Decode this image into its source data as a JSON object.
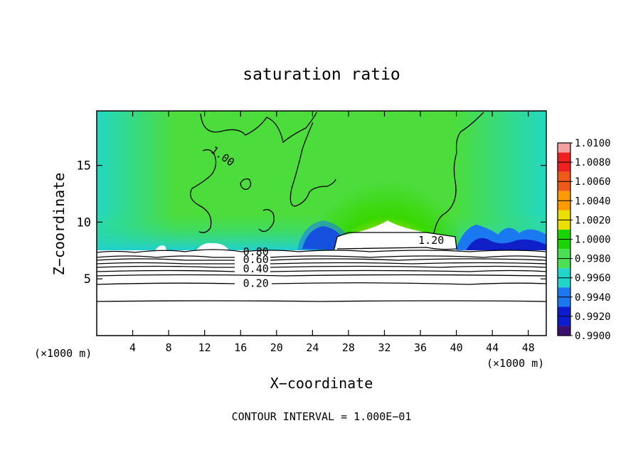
{
  "chart_data": {
    "type": "heatmap",
    "title": "saturation ratio",
    "xlabel": "X−coordinate",
    "ylabel": "Z−coordinate",
    "x_unit_left": "(×1000 m)",
    "x_unit_right": "(×1000 m)",
    "xlim": [
      0,
      50
    ],
    "ylim": [
      0,
      19.8
    ],
    "xticks": [
      4,
      8,
      12,
      16,
      20,
      24,
      28,
      32,
      36,
      40,
      44,
      48
    ],
    "yticks": [
      5,
      10,
      15
    ],
    "footer": "CONTOUR INTERVAL = 1.000E−01",
    "colorbar": {
      "levels": [
        "1.0100",
        "1.0080",
        "1.0060",
        "1.0040",
        "1.0020",
        "1.0000",
        "0.9980",
        "0.9960",
        "0.9940",
        "0.9920",
        "0.9900"
      ],
      "colors": [
        "#f4a0a0",
        "#ef2020",
        "#f05a18",
        "#ff9a00",
        "#eae000",
        "#18d400",
        "#4ae054",
        "#20d6c8",
        "#1a78f0",
        "#0c1cd0",
        "#3a1070"
      ]
    },
    "contour_labels": [
      {
        "text": "0.20",
        "x": 17.7,
        "z": 4.6
      },
      {
        "text": "0.40",
        "x": 17.7,
        "z": 5.9
      },
      {
        "text": "0.60",
        "x": 17.7,
        "z": 6.7
      },
      {
        "text": "0.80",
        "x": 17.7,
        "z": 7.4
      },
      {
        "text": "1.20",
        "x": 37.2,
        "z": 8.4
      },
      {
        "text": "1.00",
        "x": 14.0,
        "z": 15.8
      }
    ],
    "contour_levels_below_cloud": [
      3.2,
      4.8,
      5.3,
      5.9,
      6.3,
      6.7,
      7.0,
      7.3,
      7.6
    ]
  }
}
